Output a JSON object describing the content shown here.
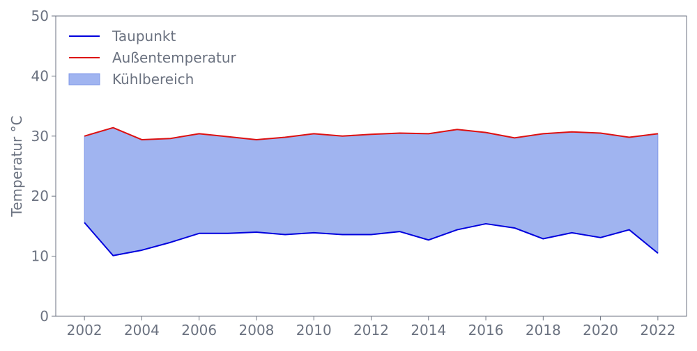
{
  "chart_data": {
    "type": "area",
    "title": "",
    "xlabel": "",
    "ylabel": "Temperatur °C",
    "xlim": [
      2001,
      2023
    ],
    "ylim": [
      0,
      50
    ],
    "x_ticks": [
      2002,
      2004,
      2006,
      2008,
      2010,
      2012,
      2014,
      2016,
      2018,
      2020,
      2022
    ],
    "y_ticks": [
      0,
      10,
      20,
      30,
      40,
      50
    ],
    "grid": false,
    "legend_position": "top-left",
    "x": [
      2002,
      2003,
      2004,
      2005,
      2006,
      2007,
      2008,
      2009,
      2010,
      2011,
      2012,
      2013,
      2014,
      2015,
      2016,
      2017,
      2018,
      2019,
      2020,
      2021,
      2022
    ],
    "series": [
      {
        "name": "Taupunkt",
        "kind": "line",
        "color": "#0000dd",
        "values": [
          15.6,
          10.1,
          11.0,
          12.3,
          13.8,
          13.8,
          14.0,
          13.6,
          13.9,
          13.6,
          13.6,
          14.1,
          12.7,
          14.4,
          15.4,
          14.7,
          12.9,
          13.9,
          13.1,
          14.4,
          10.5
        ]
      },
      {
        "name": "Außentemperatur",
        "kind": "line",
        "color": "#dd1111",
        "values": [
          30.0,
          31.4,
          29.4,
          29.6,
          30.4,
          29.9,
          29.4,
          29.8,
          30.4,
          30.0,
          30.3,
          30.5,
          30.4,
          31.1,
          30.6,
          29.7,
          30.4,
          30.7,
          30.5,
          29.8,
          30.4
        ]
      }
    ],
    "fill": {
      "name": "Kühlbereich",
      "between": [
        "Taupunkt",
        "Außentemperatur"
      ],
      "color": "#a0b4f0",
      "edge_color": "#8099e8"
    },
    "axis_color": "#6b7280"
  }
}
